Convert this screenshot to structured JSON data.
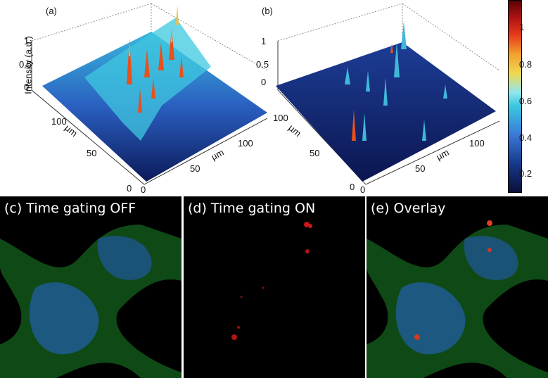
{
  "plots": {
    "a": {
      "label": "(a)",
      "zlabel": "Intensity (a.u.)",
      "z_ticks": [
        "1",
        "0.5",
        "0"
      ],
      "y_axis_label": "µm",
      "y_ticks": [
        "100",
        "50",
        "0"
      ],
      "x_axis_label": "µm",
      "x_ticks": [
        "0",
        "50",
        "100"
      ]
    },
    "b": {
      "label": "(b)",
      "z_ticks": [
        "1",
        "0.5",
        "0"
      ],
      "y_axis_label": "µm",
      "y_ticks": [
        "100",
        "50",
        "0"
      ],
      "x_axis_label": "µm",
      "x_ticks": [
        "0",
        "50",
        "100"
      ]
    }
  },
  "colorbar": {
    "ticks": [
      "1",
      "0.8",
      "0.6",
      "0.4",
      "0.2"
    ]
  },
  "panels": [
    {
      "title": "(c) Time gating OFF"
    },
    {
      "title": "(d) Time gating ON"
    },
    {
      "title": "(e) Overlay"
    }
  ]
}
